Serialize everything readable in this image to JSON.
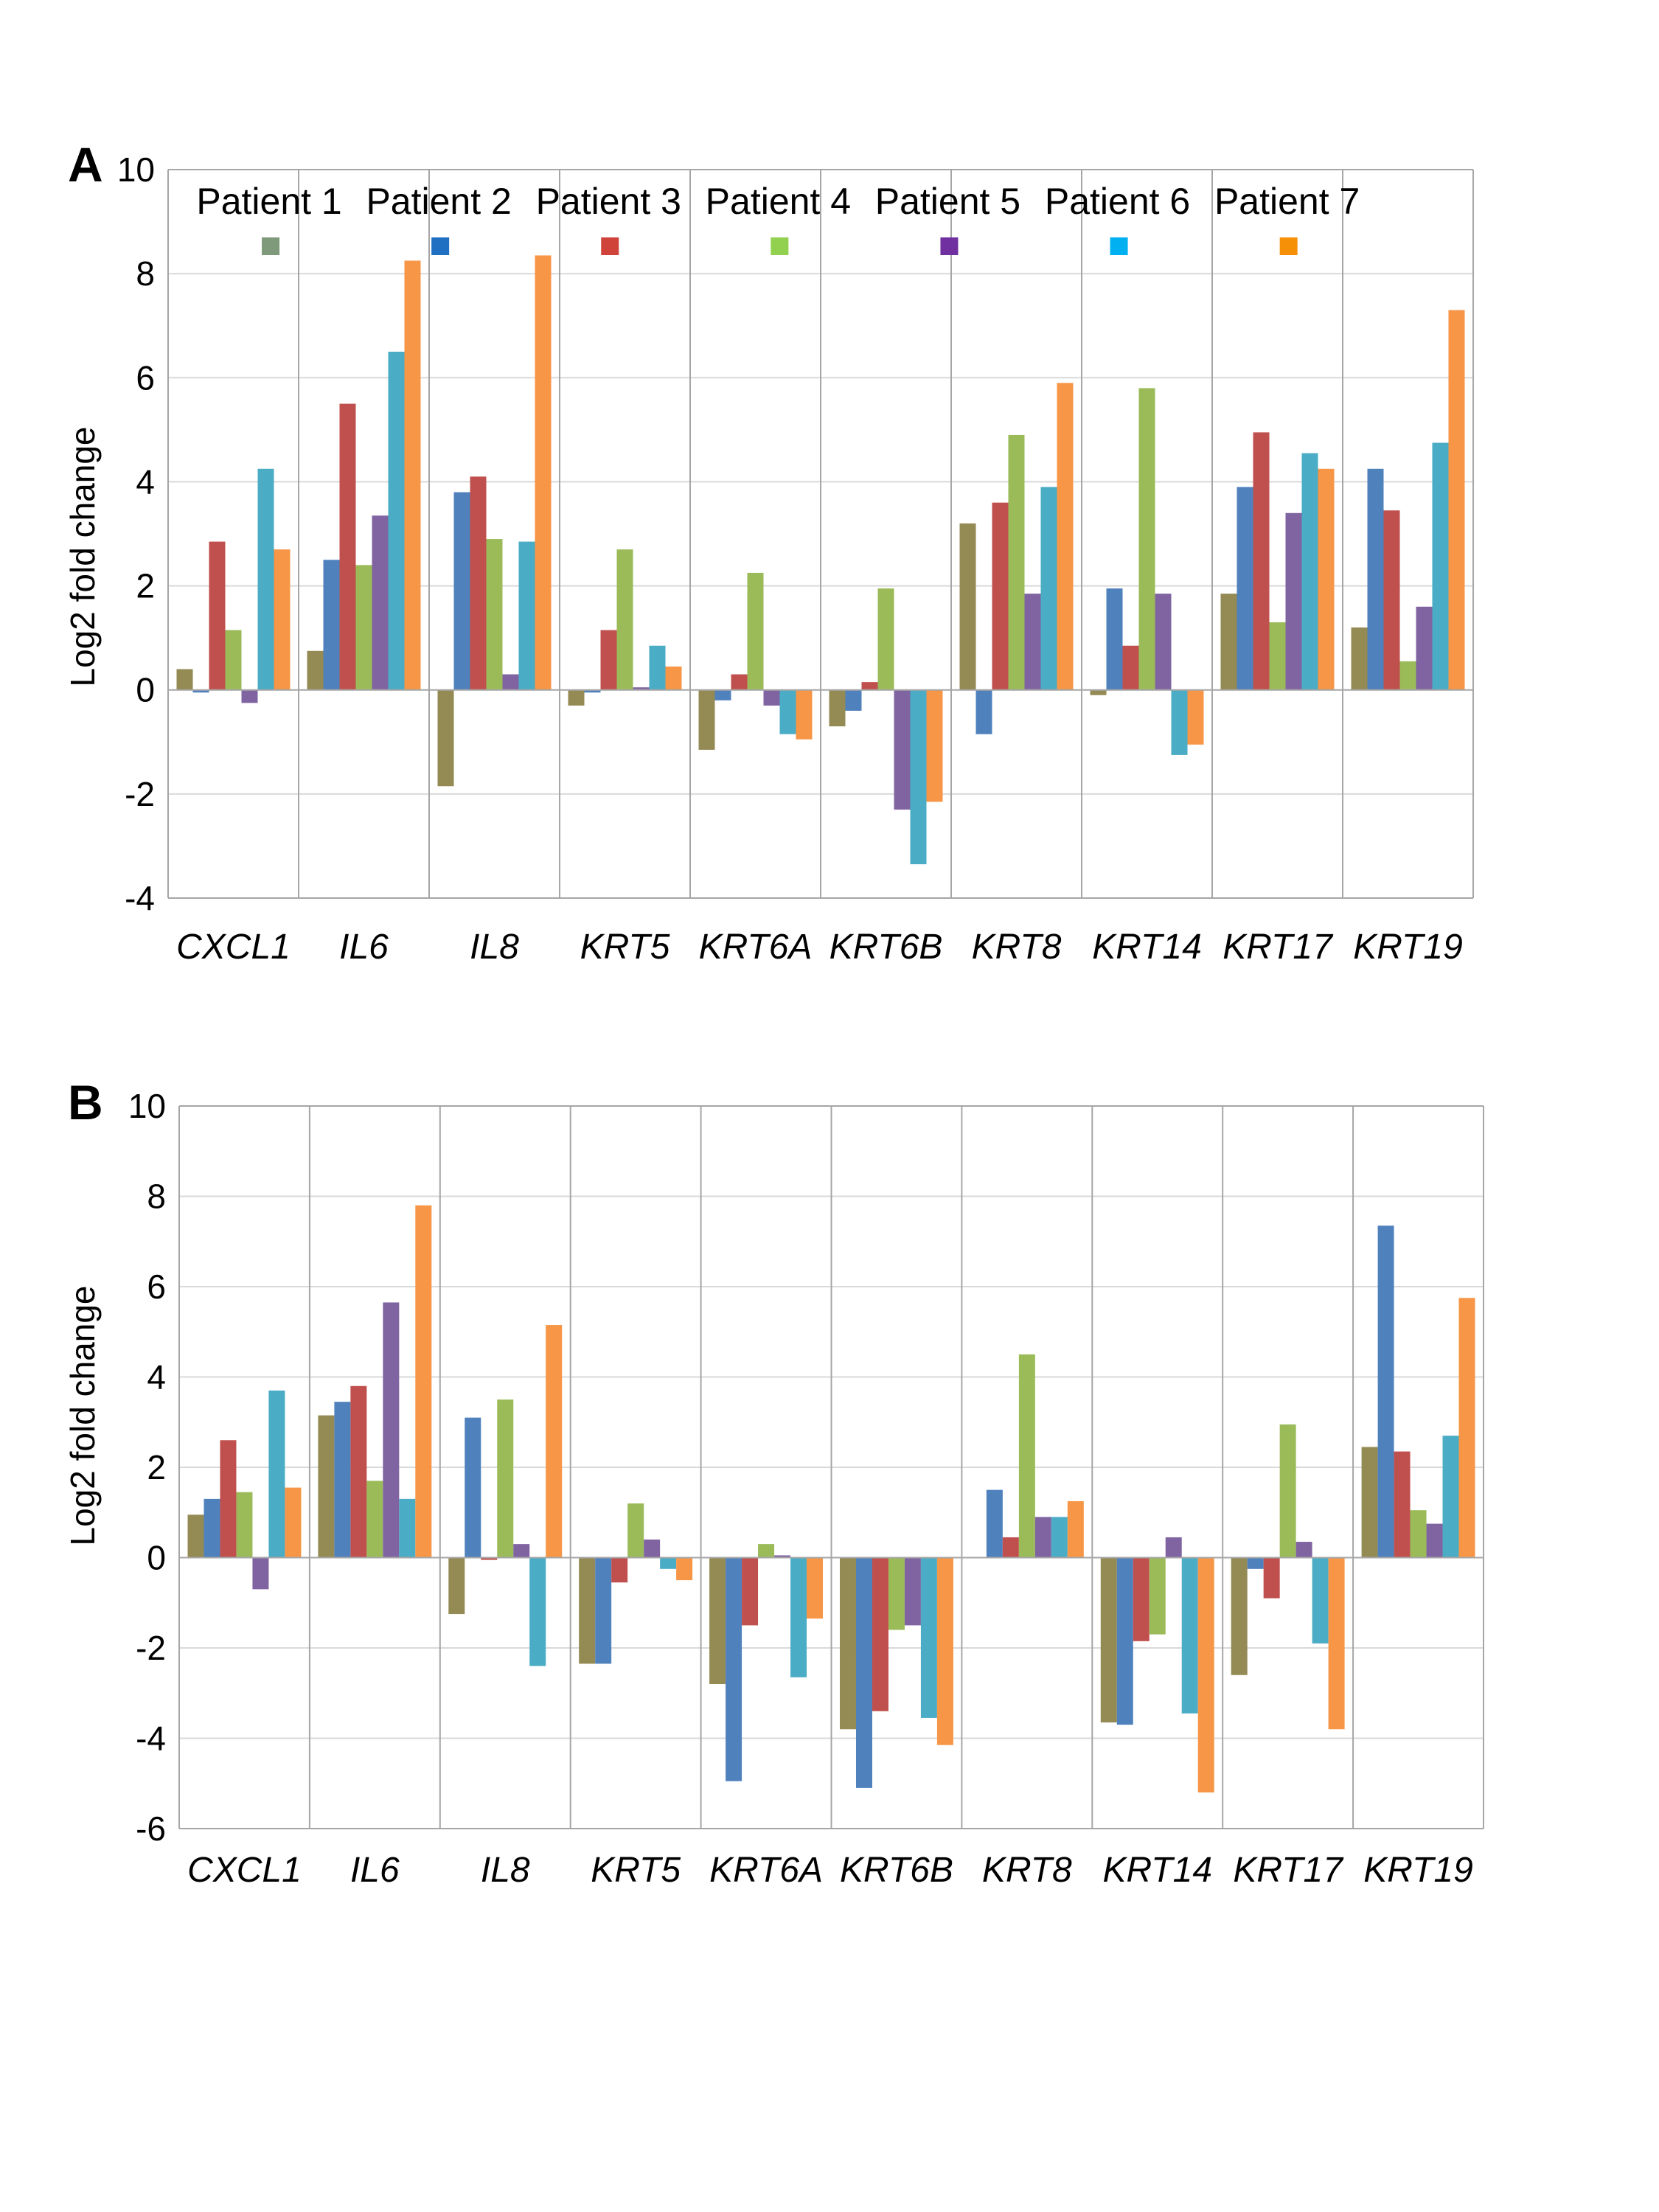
{
  "chart_data": [
    {
      "panel": "A",
      "type": "bar",
      "ylabel": "Log2 fold change",
      "ylim": [
        -4,
        10
      ],
      "yticks": [
        -4,
        -2,
        0,
        2,
        4,
        6,
        8,
        10
      ],
      "grid": true,
      "legend": "top",
      "categories": [
        "CXCL1",
        "IL6",
        "IL8",
        "KRT5",
        "KRT6A",
        "KRT6B",
        "KRT8",
        "KRT14",
        "KRT17",
        "KRT19"
      ],
      "series": [
        {
          "name": "Patient 1",
          "color": "#948A54",
          "legend_color": "#7F9A7B",
          "values": [
            0.4,
            0.75,
            -1.85,
            -0.3,
            -1.15,
            -0.7,
            3.2,
            -0.1,
            1.85,
            1.2
          ]
        },
        {
          "name": "Patient 2",
          "color": "#4F81BD",
          "legend_color": "#1F6FC2",
          "values": [
            -0.05,
            2.5,
            3.8,
            -0.05,
            -0.2,
            -0.4,
            -0.85,
            1.95,
            3.9,
            4.25
          ]
        },
        {
          "name": "Patient 3",
          "color": "#C0504D",
          "legend_color": "#D0433A",
          "values": [
            2.85,
            5.5,
            4.1,
            1.15,
            0.3,
            0.15,
            3.6,
            0.85,
            4.95,
            3.45
          ]
        },
        {
          "name": "Patient 4",
          "color": "#9BBB59",
          "legend_color": "#92D050",
          "values": [
            1.15,
            2.4,
            2.9,
            2.7,
            2.25,
            1.95,
            4.9,
            5.8,
            1.3,
            0.55
          ]
        },
        {
          "name": "Patient 5",
          "color": "#8064A2",
          "legend_color": "#7030A0",
          "values": [
            -0.25,
            3.35,
            0.3,
            0.05,
            -0.3,
            -2.3,
            1.85,
            1.85,
            3.4,
            1.6
          ]
        },
        {
          "name": "Patient 6",
          "color": "#4BACC6",
          "legend_color": "#00B0F0",
          "values": [
            4.25,
            6.5,
            2.85,
            0.85,
            -0.85,
            -3.35,
            3.9,
            -1.25,
            4.55,
            4.75
          ]
        },
        {
          "name": "Patient 7",
          "color": "#F79646",
          "legend_color": "#F79009",
          "values": [
            2.7,
            8.25,
            8.35,
            0.45,
            -0.95,
            -2.15,
            5.9,
            -1.05,
            4.25,
            7.3
          ]
        }
      ]
    },
    {
      "panel": "B",
      "type": "bar",
      "ylabel": "Log2 fold change",
      "ylim": [
        -6,
        10
      ],
      "yticks": [
        -6,
        -4,
        -2,
        0,
        2,
        4,
        6,
        8,
        10
      ],
      "grid": true,
      "categories": [
        "CXCL1",
        "IL6",
        "IL8",
        "KRT5",
        "KRT6A",
        "KRT6B",
        "KRT8",
        "KRT14",
        "KRT17",
        "KRT19"
      ],
      "series": [
        {
          "color": "#948A54",
          "values": [
            0.95,
            3.15,
            -1.25,
            -2.35,
            -2.8,
            -3.8,
            0.0,
            -3.65,
            -2.6,
            2.45
          ]
        },
        {
          "color": "#4F81BD",
          "values": [
            1.3,
            3.45,
            3.1,
            -2.35,
            -4.95,
            -5.1,
            1.5,
            -3.7,
            -0.25,
            7.35
          ]
        },
        {
          "color": "#C0504D",
          "values": [
            2.6,
            3.8,
            -0.05,
            -0.55,
            -1.5,
            -3.4,
            0.45,
            -1.85,
            -0.9,
            2.35
          ]
        },
        {
          "color": "#9BBB59",
          "values": [
            1.45,
            1.7,
            3.5,
            1.2,
            0.3,
            -1.6,
            4.5,
            -1.7,
            2.95,
            1.05
          ]
        },
        {
          "color": "#8064A2",
          "values": [
            -0.7,
            5.65,
            0.3,
            0.4,
            0.05,
            -1.5,
            0.9,
            0.45,
            0.35,
            0.75
          ]
        },
        {
          "color": "#4BACC6",
          "values": [
            3.7,
            1.3,
            -2.4,
            -0.25,
            -2.65,
            -3.55,
            0.9,
            -3.45,
            -1.9,
            2.7
          ]
        },
        {
          "color": "#F79646",
          "values": [
            1.55,
            7.8,
            5.15,
            -0.5,
            -1.35,
            -4.15,
            1.25,
            -5.2,
            -3.8,
            5.75
          ]
        }
      ]
    }
  ]
}
